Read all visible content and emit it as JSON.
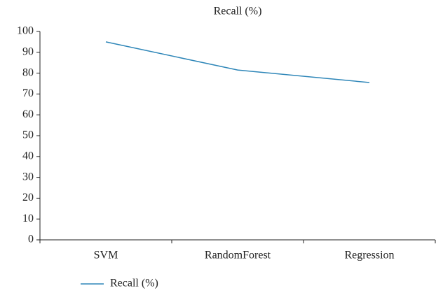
{
  "chart_data": {
    "type": "line",
    "title": "Recall (%)",
    "categories": [
      "SVM",
      "RandomForest",
      "Regression"
    ],
    "series": [
      {
        "name": "Recall (%)",
        "color": "#2e86b8",
        "values": [
          95,
          81.5,
          75.5
        ]
      }
    ],
    "ylim": [
      0,
      100
    ],
    "yticks": [
      0,
      10,
      20,
      30,
      40,
      50,
      60,
      70,
      80,
      90,
      100
    ],
    "legend": "bottom-left"
  }
}
